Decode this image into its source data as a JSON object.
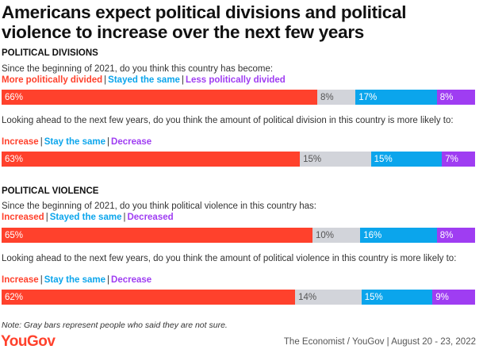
{
  "title": "Americans expect political divisions and political violence to increase over the next few years",
  "colors": {
    "red": "#ff412c",
    "gray": "#d2d4da",
    "blue": "#0ba5ec",
    "purple": "#9f3df2"
  },
  "chart_data": {
    "type": "bar",
    "orientation": "horizontal-stacked",
    "sections": [
      {
        "heading": "POLITICAL DIVISIONS",
        "questions": [
          {
            "text": "Since the beginning of 2021, do you think this country has become:",
            "legend": [
              "More politically divided",
              "Stayed the same",
              "Less politically divided"
            ],
            "segments": [
              {
                "value": 66,
                "label": "66%",
                "color": "red"
              },
              {
                "value": 8,
                "label": "8%",
                "color": "gray"
              },
              {
                "value": 17,
                "label": "17%",
                "color": "blue"
              },
              {
                "value": 8,
                "label": "8%",
                "color": "purple"
              }
            ]
          },
          {
            "text": "Looking ahead to the next few years, do you think the amount of political division in this country is more likely to:",
            "legend": [
              "Increase",
              "Stay the same",
              "Decrease"
            ],
            "segments": [
              {
                "value": 63,
                "label": "63%",
                "color": "red"
              },
              {
                "value": 15,
                "label": "15%",
                "color": "gray"
              },
              {
                "value": 15,
                "label": "15%",
                "color": "blue"
              },
              {
                "value": 7,
                "label": "7%",
                "color": "purple"
              }
            ]
          }
        ]
      },
      {
        "heading": "POLITICAL VIOLENCE",
        "questions": [
          {
            "text": "Since the beginning of 2021, do you think political violence in this country has:",
            "legend": [
              "Increased",
              "Stayed the same",
              "Decreased"
            ],
            "segments": [
              {
                "value": 65,
                "label": "65%",
                "color": "red"
              },
              {
                "value": 10,
                "label": "10%",
                "color": "gray"
              },
              {
                "value": 16,
                "label": "16%",
                "color": "blue"
              },
              {
                "value": 8,
                "label": "8%",
                "color": "purple"
              }
            ]
          },
          {
            "text": "Looking ahead to the next few years, do you think the amount of political violence in this country is more likely to:",
            "legend": [
              "Increase",
              "Stay the same",
              "Decrease"
            ],
            "segments": [
              {
                "value": 62,
                "label": "62%",
                "color": "red"
              },
              {
                "value": 14,
                "label": "14%",
                "color": "gray"
              },
              {
                "value": 15,
                "label": "15%",
                "color": "blue"
              },
              {
                "value": 9,
                "label": "9%",
                "color": "purple"
              }
            ]
          }
        ]
      }
    ]
  },
  "note": "Note: Gray bars represent people who said they are not sure.",
  "logo": "YouGov",
  "source": "The Economist / YouGov | August 20 - 23, 2022"
}
